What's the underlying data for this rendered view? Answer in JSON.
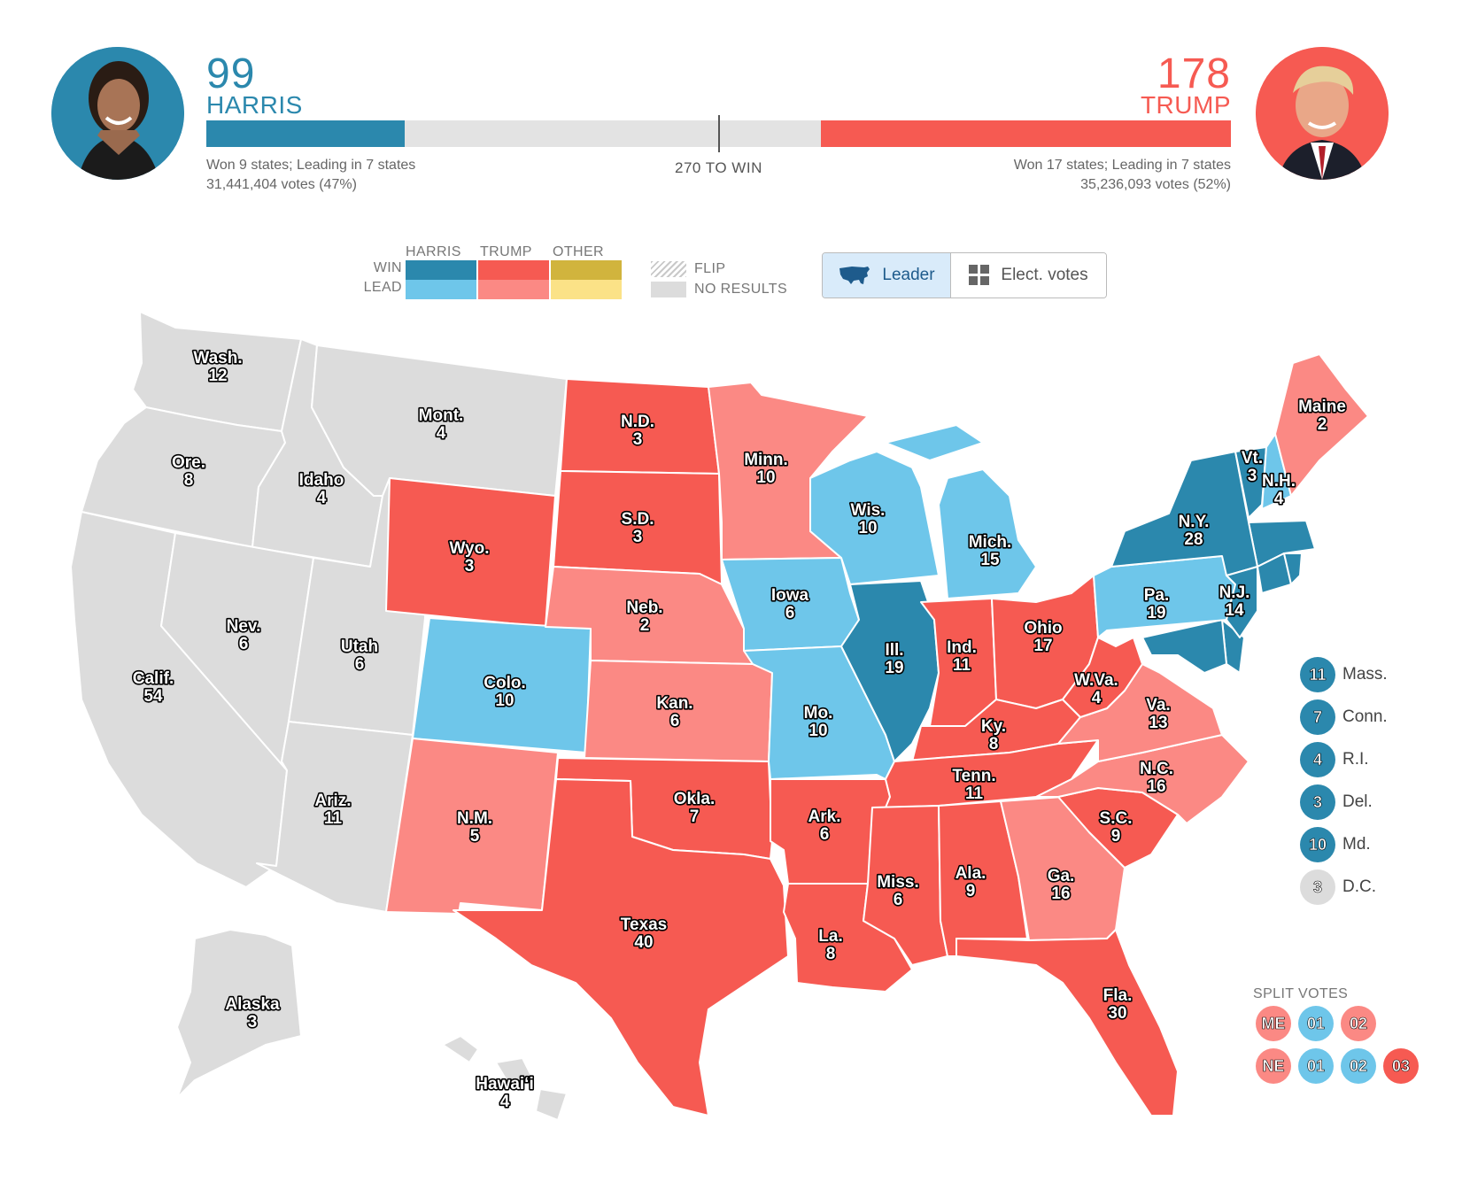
{
  "candidates": {
    "harris": {
      "name": "HARRIS",
      "electoral_votes": "99",
      "electoral_votes_value": 99,
      "status": "Won 9 states; Leading in 7 states",
      "votes": "31,441,404 votes (47%)",
      "color": "#2b88ad",
      "photo": "harris-portrait"
    },
    "trump": {
      "name": "TRUMP",
      "electoral_votes": "178",
      "electoral_votes_value": 178,
      "status": "Won 17 states; Leading in 7 states",
      "votes": "35,236,093 votes (52%)",
      "color": "#f65a52",
      "photo": "trump-portrait"
    }
  },
  "progress": {
    "to_win_label": "270 TO WIN",
    "total_electoral_votes": 538,
    "threshold": 270
  },
  "legend": {
    "columns": [
      "HARRIS",
      "TRUMP",
      "OTHER"
    ],
    "rows": [
      "WIN",
      "LEAD"
    ],
    "flip_label": "FLIP",
    "no_results_label": "NO RESULTS",
    "colors": {
      "harris_win": "#2b88ad",
      "harris_lead": "#6ec6ea",
      "trump_win": "#f65a52",
      "trump_lead": "#fb8984",
      "other_win": "#d1b43d",
      "other_lead": "#fbe287",
      "no_results": "#dcdcdc"
    }
  },
  "view_toggle": {
    "leader_label": "Leader",
    "leader_icon": "us-map-icon",
    "ev_label": "Elect. votes",
    "ev_icon": "grid-icon",
    "selected": "Leader"
  },
  "states": [
    {
      "name": "Wash.",
      "ev": "12",
      "status": "no_results"
    },
    {
      "name": "Ore.",
      "ev": "8",
      "status": "no_results"
    },
    {
      "name": "Calif.",
      "ev": "54",
      "status": "no_results"
    },
    {
      "name": "Idaho",
      "ev": "4",
      "status": "no_results"
    },
    {
      "name": "Nev.",
      "ev": "6",
      "status": "no_results"
    },
    {
      "name": "Mont.",
      "ev": "4",
      "status": "no_results"
    },
    {
      "name": "Utah",
      "ev": "6",
      "status": "no_results"
    },
    {
      "name": "Ariz.",
      "ev": "11",
      "status": "no_results"
    },
    {
      "name": "Wyo.",
      "ev": "3",
      "status": "trump_win"
    },
    {
      "name": "Colo.",
      "ev": "10",
      "status": "harris_lead"
    },
    {
      "name": "N.M.",
      "ev": "5",
      "status": "trump_lead"
    },
    {
      "name": "N.D.",
      "ev": "3",
      "status": "trump_win"
    },
    {
      "name": "S.D.",
      "ev": "3",
      "status": "trump_win"
    },
    {
      "name": "Neb.",
      "ev": "2",
      "status": "trump_lead"
    },
    {
      "name": "Kan.",
      "ev": "6",
      "status": "trump_lead"
    },
    {
      "name": "Okla.",
      "ev": "7",
      "status": "trump_win"
    },
    {
      "name": "Texas",
      "ev": "40",
      "status": "trump_win"
    },
    {
      "name": "Minn.",
      "ev": "10",
      "status": "trump_lead"
    },
    {
      "name": "Iowa",
      "ev": "6",
      "status": "harris_lead"
    },
    {
      "name": "Mo.",
      "ev": "10",
      "status": "harris_lead"
    },
    {
      "name": "Ark.",
      "ev": "6",
      "status": "trump_win"
    },
    {
      "name": "La.",
      "ev": "8",
      "status": "trump_win"
    },
    {
      "name": "Wis.",
      "ev": "10",
      "status": "harris_lead"
    },
    {
      "name": "Ill.",
      "ev": "19",
      "status": "harris_win"
    },
    {
      "name": "Mich.",
      "ev": "15",
      "status": "harris_lead"
    },
    {
      "name": "Ind.",
      "ev": "11",
      "status": "trump_win"
    },
    {
      "name": "Ohio",
      "ev": "17",
      "status": "trump_win"
    },
    {
      "name": "Ky.",
      "ev": "8",
      "status": "trump_win"
    },
    {
      "name": "Tenn.",
      "ev": "11",
      "status": "trump_win"
    },
    {
      "name": "Miss.",
      "ev": "6",
      "status": "trump_win"
    },
    {
      "name": "Ala.",
      "ev": "9",
      "status": "trump_win"
    },
    {
      "name": "Ga.",
      "ev": "16",
      "status": "trump_lead"
    },
    {
      "name": "Fla.",
      "ev": "30",
      "status": "trump_win"
    },
    {
      "name": "S.C.",
      "ev": "9",
      "status": "trump_win"
    },
    {
      "name": "N.C.",
      "ev": "16",
      "status": "trump_lead"
    },
    {
      "name": "Va.",
      "ev": "13",
      "status": "trump_lead"
    },
    {
      "name": "W.Va.",
      "ev": "4",
      "status": "trump_win"
    },
    {
      "name": "Pa.",
      "ev": "19",
      "status": "harris_lead"
    },
    {
      "name": "N.Y.",
      "ev": "28",
      "status": "harris_win"
    },
    {
      "name": "N.J.",
      "ev": "14",
      "status": "harris_win"
    },
    {
      "name": "Vt.",
      "ev": "3",
      "status": "harris_win"
    },
    {
      "name": "N.H.",
      "ev": "4",
      "status": "harris_lead"
    },
    {
      "name": "Maine",
      "ev": "2",
      "status": "trump_lead"
    },
    {
      "name": "Alaska",
      "ev": "3",
      "status": "no_results"
    },
    {
      "name": "Hawaiʻi",
      "ev": "4",
      "status": "no_results"
    }
  ],
  "small_states": [
    {
      "name": "Mass.",
      "ev": "11",
      "status": "harris_win"
    },
    {
      "name": "Conn.",
      "ev": "7",
      "status": "harris_win"
    },
    {
      "name": "R.I.",
      "ev": "4",
      "status": "harris_win"
    },
    {
      "name": "Del.",
      "ev": "3",
      "status": "harris_win"
    },
    {
      "name": "Md.",
      "ev": "10",
      "status": "harris_win"
    },
    {
      "name": "D.C.",
      "ev": "3",
      "status": "no_results"
    }
  ],
  "split_votes": {
    "title": "SPLIT VOTES",
    "maine": [
      {
        "label": "ME",
        "status": "trump_lead"
      },
      {
        "label": "01",
        "status": "harris_lead"
      },
      {
        "label": "02",
        "status": "trump_lead"
      }
    ],
    "nebraska": [
      {
        "label": "NE",
        "status": "trump_lead"
      },
      {
        "label": "01",
        "status": "harris_lead"
      },
      {
        "label": "02",
        "status": "harris_lead"
      },
      {
        "label": "03",
        "status": "trump_win"
      }
    ]
  }
}
